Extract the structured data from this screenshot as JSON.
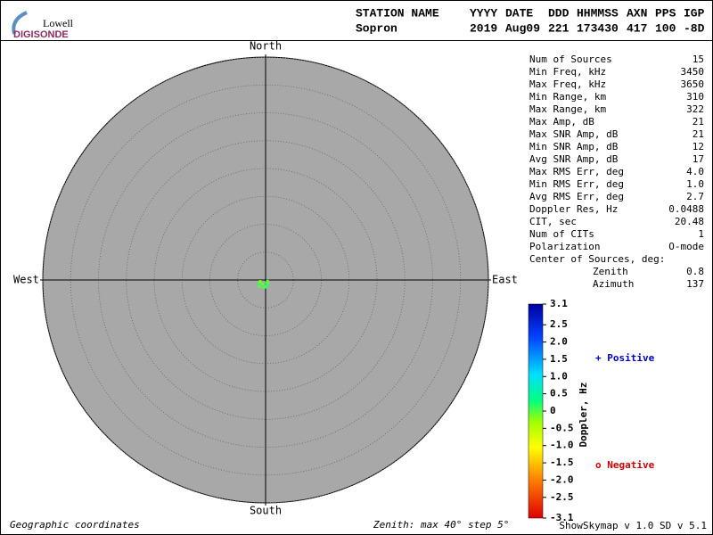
{
  "logo": {
    "top": "Lowell",
    "bottom": "DIGISONDE"
  },
  "header": {
    "columns": [
      "STATION NAME",
      "YYYY",
      "DATE",
      "DDD",
      "HHMMSS",
      "AXN",
      "PPS",
      "IGP"
    ],
    "values": [
      "Sopron",
      "2019",
      "Aug09",
      "221",
      "173430",
      "417",
      "100",
      "-8D"
    ]
  },
  "stats": {
    "rows": [
      [
        "Num of Sources",
        "15"
      ],
      [
        "Min Freq, kHz",
        "3450"
      ],
      [
        "Max Freq, kHz",
        "3650"
      ],
      [
        "Min Range, km",
        "310"
      ],
      [
        "Max Range, km",
        "322"
      ],
      [
        "Max Amp, dB",
        "21"
      ],
      [
        "Max SNR Amp, dB",
        "21"
      ],
      [
        "Min SNR Amp, dB",
        "12"
      ],
      [
        "Avg SNR Amp, dB",
        "17"
      ],
      [
        "Max RMS Err, deg",
        "4.0"
      ],
      [
        "Min RMS Err, deg",
        "1.0"
      ],
      [
        "Avg RMS Err, deg",
        "2.7"
      ],
      [
        "Doppler Res, Hz",
        "0.0488"
      ],
      [
        "CIT, sec",
        "20.48"
      ],
      [
        "Num of CITs",
        "1"
      ],
      [
        "Polarization",
        "O-mode"
      ]
    ],
    "center_title": "Center of Sources, deg:",
    "center_rows": [
      [
        "Zenith",
        "0.8"
      ],
      [
        "Azimuth",
        "137"
      ]
    ]
  },
  "chart_data": {
    "type": "skymap",
    "directions": {
      "north": "North",
      "south": "South",
      "east": "East",
      "west": "West"
    },
    "rlim": [
      0,
      40
    ],
    "rticks": [
      5,
      10,
      15,
      20,
      25,
      30,
      35,
      40
    ],
    "sources": {
      "zenith": [
        1.3,
        1.4,
        1.2,
        1.5,
        1.1,
        1.6,
        1.0,
        0.5,
        0.7,
        1.0,
        1.3,
        0.4,
        1.4,
        0.9,
        1.2
      ],
      "azimuth": [
        240,
        235,
        250,
        230,
        245,
        225,
        255,
        160,
        150,
        170,
        175,
        120,
        200,
        215,
        185
      ],
      "doppler": [
        0.1,
        0.0,
        -0.1,
        0.2,
        0.1,
        0.0,
        -0.2,
        0.1,
        0.0,
        0.2,
        0.1,
        0.0,
        0.1,
        -0.1,
        0.0
      ]
    },
    "colorbar": {
      "label": "Doppler, Hz",
      "lim": [
        -3.1,
        3.1
      ],
      "ticks": [
        3.1,
        {
          "value": 2.5,
          "label": "2.5"
        },
        {
          "value": 2,
          "label": "2.0"
        },
        1.5,
        {
          "value": 1,
          "label": "1.0"
        },
        0.5,
        0,
        -0.5,
        {
          "value": -1,
          "label": "-1.0"
        },
        -1.5,
        {
          "value": -2,
          "label": "-2.0"
        },
        -2.5,
        -3.1
      ]
    },
    "legend": {
      "positive": "+ Positive",
      "negative": "o Negative"
    },
    "footer": {
      "left": "Geographic coordinates",
      "middle": "Zenith: max 40°  step 5°",
      "right": "ShowSkymap v 1.0  SD v 5.1"
    }
  }
}
